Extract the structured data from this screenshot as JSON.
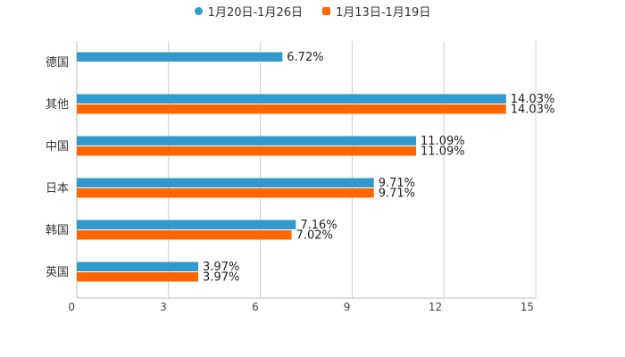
{
  "chart_data": {
    "type": "bar",
    "orientation": "horizontal",
    "title": "",
    "xlabel": "",
    "ylabel": "",
    "xlim": [
      0,
      15
    ],
    "xticks": [
      "0",
      "3",
      "6",
      "9",
      "12",
      "15"
    ],
    "grid": true,
    "legend_position": "top-center",
    "categories": [
      "德国",
      "其他",
      "中国",
      "日本",
      "韩国",
      "英国"
    ],
    "series": [
      {
        "name": "1月20日-1月26日",
        "color": "#3399cc",
        "values": [
          6.72,
          14.03,
          11.09,
          9.71,
          7.16,
          3.97
        ],
        "labels": [
          "6.72%",
          "14.03%",
          "11.09%",
          "9.71%",
          "7.16%",
          "3.97%"
        ]
      },
      {
        "name": "1月13日-1月19日",
        "color": "#ff6600",
        "values": [
          null,
          14.03,
          11.09,
          9.71,
          7.02,
          3.97
        ],
        "labels": [
          "",
          "14.03%",
          "11.09%",
          "9.71%",
          "7.02%",
          "3.97%"
        ]
      }
    ]
  }
}
